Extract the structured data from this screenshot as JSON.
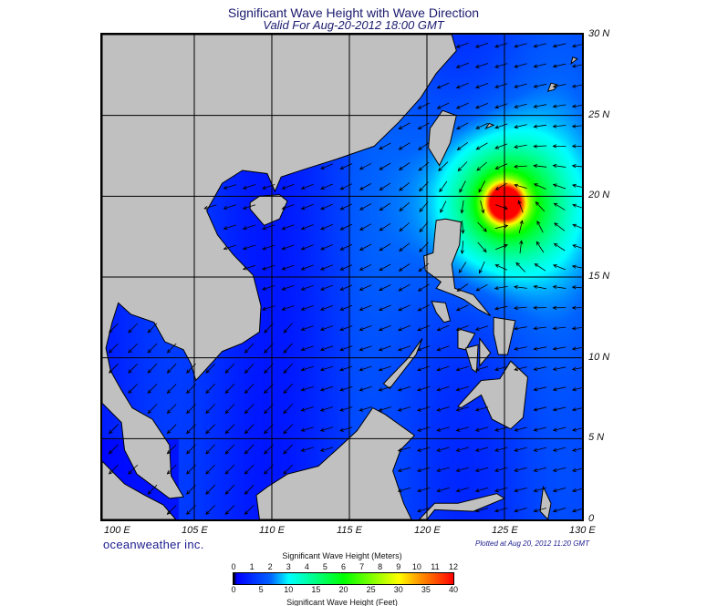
{
  "title": "Significant Wave Height with Wave Direction",
  "subtitle": "Valid For Aug-20-2012 18:00 GMT",
  "map": {
    "region": "South China Sea / Western Pacific",
    "lon_range": [
      99,
      130
    ],
    "lat_range": [
      0,
      30
    ],
    "lon_labels": [
      "100 E",
      "105 E",
      "110 E",
      "115 E",
      "120 E",
      "125 E",
      "130 E"
    ],
    "lat_labels": [
      "30 N",
      "25 N",
      "20 N",
      "15 N",
      "10 N",
      "5 N",
      "0"
    ],
    "grid": true,
    "land_color": "#c0c0c0",
    "storm_center": {
      "lon": 125.0,
      "lat": 19.6,
      "max_wave_height_m": 12
    }
  },
  "colorbar": {
    "title_meters": "Significant Wave Height (Meters)",
    "title_feet": "Significant Wave Height (Feet)",
    "meter_ticks": [
      "0",
      "1",
      "2",
      "3",
      "4",
      "5",
      "6",
      "7",
      "8",
      "9",
      "10",
      "11",
      "12"
    ],
    "feet_ticks": [
      "0",
      "5",
      "10",
      "15",
      "20",
      "25",
      "30",
      "35",
      "40"
    ],
    "colors": [
      "#000000",
      "#0000ff",
      "#0066ff",
      "#00ffff",
      "#00ff00",
      "#ffff00",
      "#ffa000",
      "#ff0000"
    ]
  },
  "footer": {
    "logo": "oceanweather inc.",
    "plotted": "Plotted at Aug 20, 2012 11:20 GMT"
  }
}
